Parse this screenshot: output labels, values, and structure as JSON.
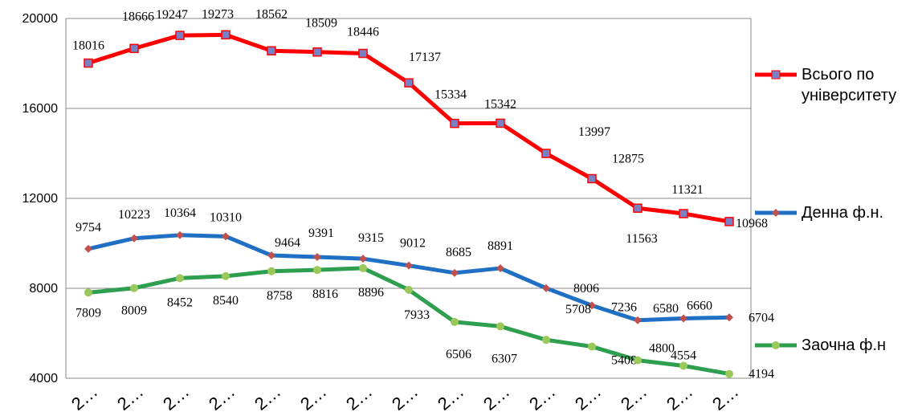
{
  "chart_data": {
    "type": "line",
    "categories": [
      "2…",
      "2…",
      "2…",
      "2…",
      "2…",
      "2…",
      "2…",
      "2…",
      "2…",
      "2…",
      "2…",
      "2…",
      "2…",
      "2…",
      "2…"
    ],
    "series": [
      {
        "name": "Всього по університету",
        "color": "#ff0000",
        "marker_color": "#7b7fc4",
        "values": [
          18016,
          18666,
          19247,
          19273,
          18562,
          18509,
          18446,
          17137,
          15334,
          15342,
          13997,
          12875,
          11563,
          11321,
          10968
        ]
      },
      {
        "name": "Денна ф.н.",
        "color": "#1f6fc4",
        "marker_color": "#c0504d",
        "values": [
          9754,
          10223,
          10364,
          10310,
          9464,
          9391,
          9315,
          9012,
          8685,
          8891,
          8006,
          7236,
          6580,
          6660,
          6704
        ]
      },
      {
        "name": "Заочна ф.н",
        "color": "#2e9e4f",
        "marker_color": "#9bc85a",
        "values": [
          7809,
          8009,
          8452,
          8540,
          8758,
          8816,
          8896,
          7933,
          6506,
          6307,
          5708,
          5408,
          4800,
          4554,
          4194
        ]
      }
    ],
    "ylim": [
      4000,
      20000
    ],
    "yticks": [
      4000,
      8000,
      12000,
      16000,
      20000
    ],
    "grid": true
  }
}
